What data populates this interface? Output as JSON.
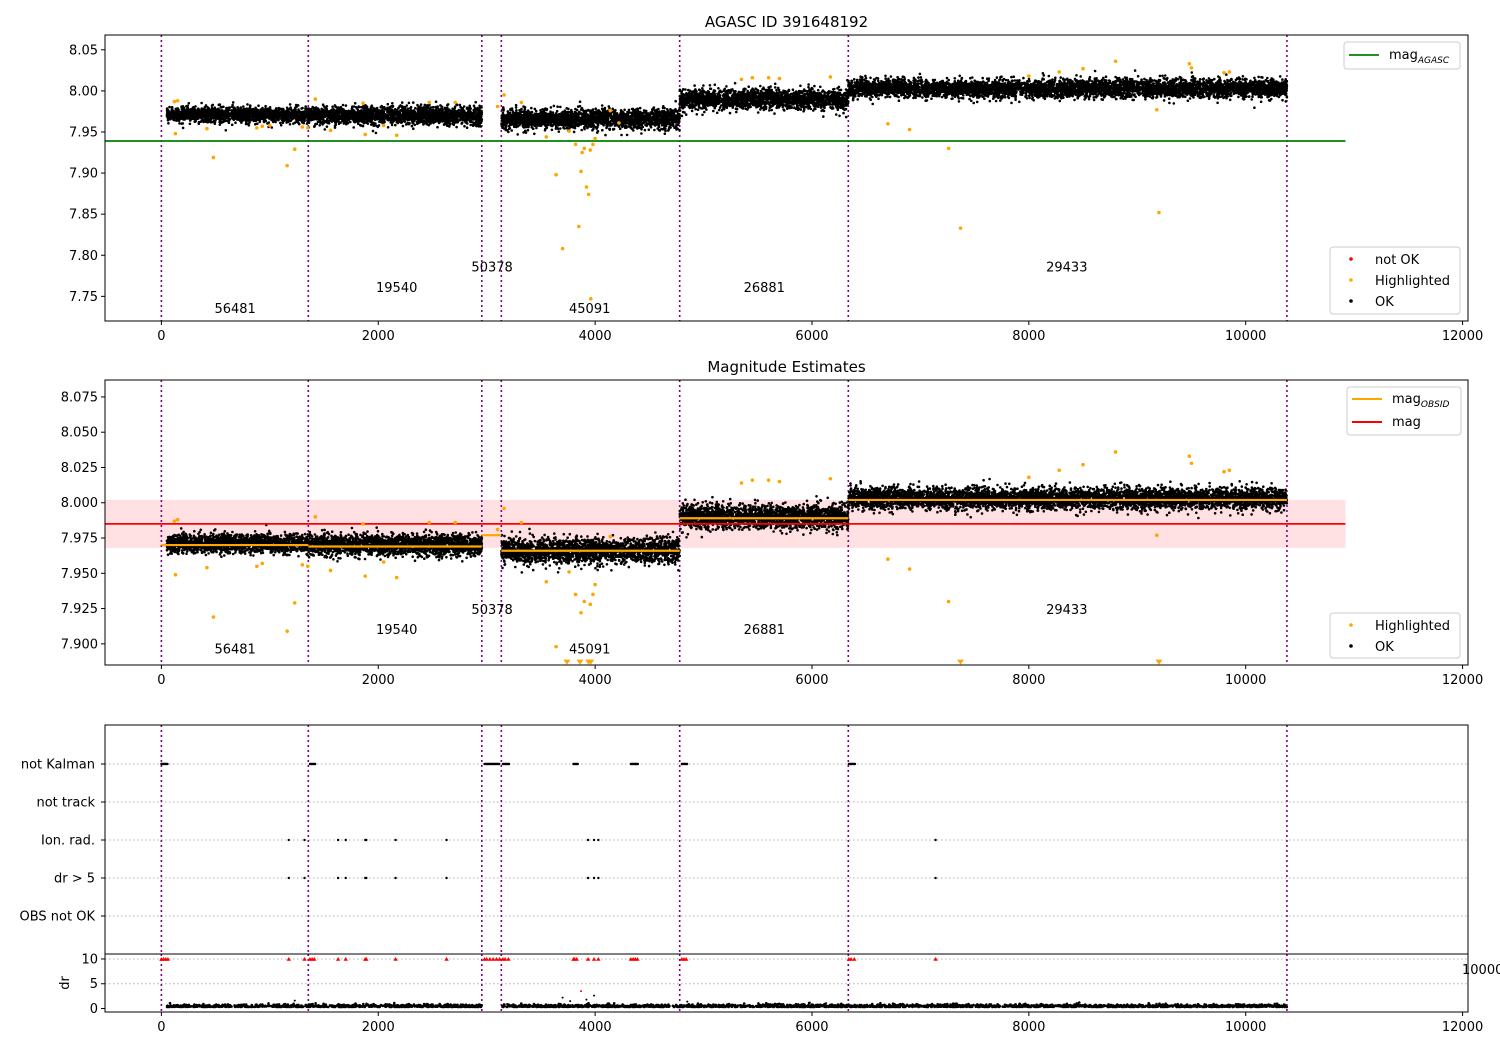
{
  "colors": {
    "ok": "#000000",
    "highlighted": "#ffa500",
    "not_ok": "#ff0000",
    "agasc_line": "#008000",
    "mag_line": "#ff0000",
    "obsid_line": "#ffa500",
    "band": "#ffdde0",
    "obs_divider": "#800080",
    "grid": "#b0b0b0"
  },
  "chart_data": [
    {
      "type": "scatter",
      "title": "AGASC ID 391648192",
      "xlim": [
        -520,
        12050
      ],
      "ylim": [
        7.72,
        8.068
      ],
      "x_ticks": [
        0,
        2000,
        4000,
        6000,
        8000,
        10000,
        12000
      ],
      "x_tick_labels": [
        "0",
        "2000",
        "4000",
        "6000",
        "8000",
        "10000",
        "12000"
      ],
      "y_ticks": [
        7.75,
        7.8,
        7.85,
        7.9,
        7.95,
        8.0,
        8.05
      ],
      "y_tick_labels": [
        "7.75",
        "7.80",
        "7.85",
        "7.90",
        "7.95",
        "8.00",
        "8.05"
      ],
      "obs_boundaries": [
        0,
        1355,
        2955,
        3135,
        4780,
        6335,
        10380
      ],
      "obs_labels": [
        {
          "text": "56481",
          "x": 680,
          "y": 7.73
        },
        {
          "text": "19540",
          "x": 2170,
          "y": 7.755
        },
        {
          "text": "50378",
          "x": 3050,
          "y": 7.78
        },
        {
          "text": "45091",
          "x": 3950,
          "y": 7.73
        },
        {
          "text": "26881",
          "x": 5560,
          "y": 7.755
        },
        {
          "text": "29433",
          "x": 8350,
          "y": 7.78
        }
      ],
      "mag_agasc": 7.939,
      "mag_agasc_xrange": [
        -520,
        10920
      ],
      "ok_series": [
        {
          "x_start": 50,
          "x_end": 1355,
          "mean": 7.971,
          "spread": 0.008
        },
        {
          "x_start": 1355,
          "x_end": 2955,
          "mean": 7.97,
          "spread": 0.01
        },
        {
          "x_start": 3135,
          "x_end": 4780,
          "mean": 7.966,
          "spread": 0.011
        },
        {
          "x_start": 4780,
          "x_end": 6335,
          "mean": 7.99,
          "spread": 0.011
        },
        {
          "x_start": 6335,
          "x_end": 10380,
          "mean": 8.003,
          "spread": 0.01
        }
      ],
      "highlighted_points": [
        [
          120,
          7.987
        ],
        [
          150,
          7.988
        ],
        [
          130,
          7.948
        ],
        [
          420,
          7.954
        ],
        [
          480,
          7.919
        ],
        [
          880,
          7.955
        ],
        [
          930,
          7.957
        ],
        [
          1000,
          7.958
        ],
        [
          1160,
          7.909
        ],
        [
          1230,
          7.929
        ],
        [
          1300,
          7.956
        ],
        [
          1350,
          7.955
        ],
        [
          1420,
          7.99
        ],
        [
          1560,
          7.952
        ],
        [
          1860,
          7.985
        ],
        [
          1880,
          7.947
        ],
        [
          2050,
          7.958
        ],
        [
          2170,
          7.946
        ],
        [
          2470,
          7.986
        ],
        [
          2710,
          7.986
        ],
        [
          3100,
          7.981
        ],
        [
          3160,
          7.995
        ],
        [
          3320,
          7.986
        ],
        [
          3550,
          7.944
        ],
        [
          3640,
          7.898
        ],
        [
          3700,
          7.808
        ],
        [
          3760,
          7.951
        ],
        [
          3820,
          7.935
        ],
        [
          3850,
          7.835
        ],
        [
          3870,
          7.902
        ],
        [
          3880,
          7.925
        ],
        [
          3900,
          7.93
        ],
        [
          3920,
          7.883
        ],
        [
          3940,
          7.874
        ],
        [
          3955,
          7.928
        ],
        [
          3960,
          7.747
        ],
        [
          3980,
          7.935
        ],
        [
          4000,
          7.942
        ],
        [
          4140,
          7.976
        ],
        [
          4220,
          7.961
        ],
        [
          5350,
          8.014
        ],
        [
          5450,
          8.016
        ],
        [
          5600,
          8.016
        ],
        [
          5700,
          8.015
        ],
        [
          6170,
          8.017
        ],
        [
          6700,
          7.96
        ],
        [
          6900,
          7.953
        ],
        [
          7260,
          7.93
        ],
        [
          7370,
          7.833
        ],
        [
          8000,
          8.018
        ],
        [
          8280,
          8.023
        ],
        [
          8500,
          8.027
        ],
        [
          8800,
          8.036
        ],
        [
          9180,
          7.977
        ],
        [
          9200,
          7.852
        ],
        [
          9480,
          8.033
        ],
        [
          9500,
          8.028
        ],
        [
          9800,
          8.022
        ],
        [
          9850,
          8.023
        ]
      ],
      "legend_top": [
        {
          "label": "mag",
          "sub": "AGASC",
          "type": "line"
        }
      ],
      "legend_bottom": [
        {
          "label": "not OK",
          "type": "marker"
        },
        {
          "label": "Highlighted",
          "type": "marker"
        },
        {
          "label": "OK",
          "type": "marker"
        }
      ]
    },
    {
      "type": "scatter",
      "title": "Magnitude Estimates",
      "xlim": [
        -520,
        12050
      ],
      "ylim": [
        7.885,
        8.087
      ],
      "x_ticks": [
        0,
        2000,
        4000,
        6000,
        8000,
        10000,
        12000
      ],
      "x_tick_labels": [
        "0",
        "2000",
        "4000",
        "6000",
        "8000",
        "10000",
        "12000"
      ],
      "y_ticks": [
        7.9,
        7.925,
        7.95,
        7.975,
        8.0,
        8.025,
        8.05,
        8.075
      ],
      "y_tick_labels": [
        "7.900",
        "7.925",
        "7.950",
        "7.975",
        "8.000",
        "8.025",
        "8.050",
        "8.075"
      ],
      "obs_boundaries": [
        0,
        1355,
        2955,
        3135,
        4780,
        6335,
        10380
      ],
      "obs_labels": [
        {
          "text": "56481",
          "x": 680,
          "y": 7.893
        },
        {
          "text": "19540",
          "x": 2170,
          "y": 7.907
        },
        {
          "text": "50378",
          "x": 3050,
          "y": 7.921
        },
        {
          "text": "45091",
          "x": 3950,
          "y": 7.893
        },
        {
          "text": "26881",
          "x": 5560,
          "y": 7.907
        },
        {
          "text": "29433",
          "x": 8350,
          "y": 7.921
        }
      ],
      "mag": 7.985,
      "mag_band": [
        7.968,
        8.002
      ],
      "mag_xrange": [
        -520,
        10920
      ],
      "mag_obsid_segments": [
        {
          "x_start": 0,
          "x_end": 1355,
          "mag": 7.97
        },
        {
          "x_start": 1355,
          "x_end": 2955,
          "mag": 7.969
        },
        {
          "x_start": 2955,
          "x_end": 3135,
          "mag": 7.977
        },
        {
          "x_start": 3135,
          "x_end": 4780,
          "mag": 7.966
        },
        {
          "x_start": 4780,
          "x_end": 6335,
          "mag": 7.989
        },
        {
          "x_start": 6335,
          "x_end": 10380,
          "mag": 8.002
        }
      ],
      "ok_series": [
        {
          "x_start": 50,
          "x_end": 1355,
          "mean": 7.971,
          "spread": 0.006
        },
        {
          "x_start": 1355,
          "x_end": 2955,
          "mean": 7.97,
          "spread": 0.007
        },
        {
          "x_start": 3135,
          "x_end": 4780,
          "mean": 7.966,
          "spread": 0.008
        },
        {
          "x_start": 4780,
          "x_end": 6335,
          "mean": 7.99,
          "spread": 0.008
        },
        {
          "x_start": 6335,
          "x_end": 10380,
          "mean": 8.003,
          "spread": 0.007
        }
      ],
      "highlighted_points": [
        [
          120,
          7.987
        ],
        [
          150,
          7.988
        ],
        [
          130,
          7.949
        ],
        [
          420,
          7.954
        ],
        [
          480,
          7.919
        ],
        [
          880,
          7.955
        ],
        [
          930,
          7.957
        ],
        [
          1160,
          7.909
        ],
        [
          1230,
          7.929
        ],
        [
          1300,
          7.956
        ],
        [
          1350,
          7.955
        ],
        [
          1420,
          7.99
        ],
        [
          1560,
          7.952
        ],
        [
          1860,
          7.985
        ],
        [
          1880,
          7.948
        ],
        [
          2050,
          7.958
        ],
        [
          2170,
          7.947
        ],
        [
          2470,
          7.986
        ],
        [
          2710,
          7.986
        ],
        [
          3100,
          7.981
        ],
        [
          3160,
          7.996
        ],
        [
          3320,
          7.986
        ],
        [
          3550,
          7.944
        ],
        [
          3640,
          7.898
        ],
        [
          3760,
          7.951
        ],
        [
          3820,
          7.935
        ],
        [
          3870,
          7.922
        ],
        [
          3900,
          7.93
        ],
        [
          3955,
          7.928
        ],
        [
          3980,
          7.935
        ],
        [
          4000,
          7.942
        ],
        [
          4140,
          7.976
        ],
        [
          5350,
          8.014
        ],
        [
          5450,
          8.016
        ],
        [
          5600,
          8.016
        ],
        [
          5700,
          8.015
        ],
        [
          6170,
          8.017
        ],
        [
          6700,
          7.96
        ],
        [
          6900,
          7.953
        ],
        [
          7260,
          7.93
        ],
        [
          8000,
          8.018
        ],
        [
          8280,
          8.023
        ],
        [
          8500,
          8.027
        ],
        [
          8800,
          8.036
        ],
        [
          9180,
          7.977
        ],
        [
          9480,
          8.033
        ],
        [
          9500,
          8.028
        ],
        [
          9800,
          8.022
        ],
        [
          9850,
          8.023
        ]
      ],
      "offscale_points": [
        [
          3740,
          7.887
        ],
        [
          3860,
          7.887
        ],
        [
          3940,
          7.887
        ],
        [
          3960,
          7.887
        ],
        [
          7370,
          7.887
        ],
        [
          9200,
          7.887
        ]
      ],
      "legend_top": [
        {
          "label": "mag",
          "sub": "OBSID",
          "type": "line"
        },
        {
          "label": "mag",
          "sub": "",
          "type": "line"
        }
      ],
      "legend_bottom": [
        {
          "label": "Highlighted",
          "type": "marker"
        },
        {
          "label": "OK",
          "type": "marker"
        }
      ]
    },
    {
      "type": "scatter",
      "xlim": [
        -520,
        12050
      ],
      "categories": [
        "not Kalman",
        "not track",
        "Ion. rad.",
        "dr > 5",
        "OBS not OK"
      ],
      "obs_boundaries": [
        0,
        1355,
        2955,
        3135,
        4780,
        6335,
        10380
      ],
      "flags": {
        "not Kalman": [
          [
            0,
            60
          ],
          [
            1370,
            1420
          ],
          [
            2980,
            3120
          ],
          [
            3150,
            3210
          ],
          [
            3800,
            3840
          ],
          [
            4330,
            4400
          ],
          [
            4800,
            4850
          ],
          [
            6340,
            6400
          ]
        ],
        "not track": [],
        "Ion. rad.": [
          1175,
          1320,
          1630,
          1700,
          1880,
          1890,
          2160,
          2630,
          3935,
          3990,
          4030,
          7140
        ],
        "dr > 5": [
          1175,
          1320,
          1630,
          1700,
          1880,
          1890,
          2160,
          2630,
          3935,
          3990,
          4030,
          7140
        ],
        "OBS not OK": []
      }
    },
    {
      "type": "scatter",
      "xlim": [
        -520,
        12050
      ],
      "ylabel": "dr",
      "y_ticks": [
        0,
        5,
        10
      ],
      "y_tick_labels": [
        "0",
        "5",
        "10"
      ],
      "x_ticks": [
        0,
        2000,
        4000,
        6000,
        8000,
        10000,
        12000
      ],
      "x_tick_labels": [
        "0",
        "2000",
        "4000",
        "6000",
        "8000",
        "10000",
        "12000"
      ],
      "obs_boundaries": [
        0,
        1355,
        2955,
        3135,
        4780,
        6335,
        10380
      ],
      "red_clipped_x": [
        0,
        20,
        40,
        60,
        1175,
        1320,
        1370,
        1390,
        1410,
        1630,
        1700,
        1880,
        1890,
        2160,
        2630,
        2980,
        3000,
        3030,
        3060,
        3090,
        3120,
        3150,
        3170,
        3200,
        3800,
        3810,
        3830,
        3935,
        3990,
        4030,
        4330,
        4350,
        4370,
        4390,
        4800,
        4820,
        4840,
        6340,
        6360,
        6390,
        7140
      ],
      "dr_baseline": 0.3,
      "dr_extra_points": [
        [
          1230,
          1.6
        ],
        [
          3700,
          2.2
        ],
        [
          3770,
          1.5
        ],
        [
          3870,
          3.5
        ],
        [
          3920,
          1.8
        ],
        [
          3990,
          2.6
        ],
        [
          4850,
          1.4
        ],
        [
          5980,
          1.2
        ],
        [
          6130,
          1.1
        ],
        [
          8420,
          0.9
        ],
        [
          9200,
          0.8
        ]
      ],
      "clipped_tick_label": "10000"
    }
  ]
}
